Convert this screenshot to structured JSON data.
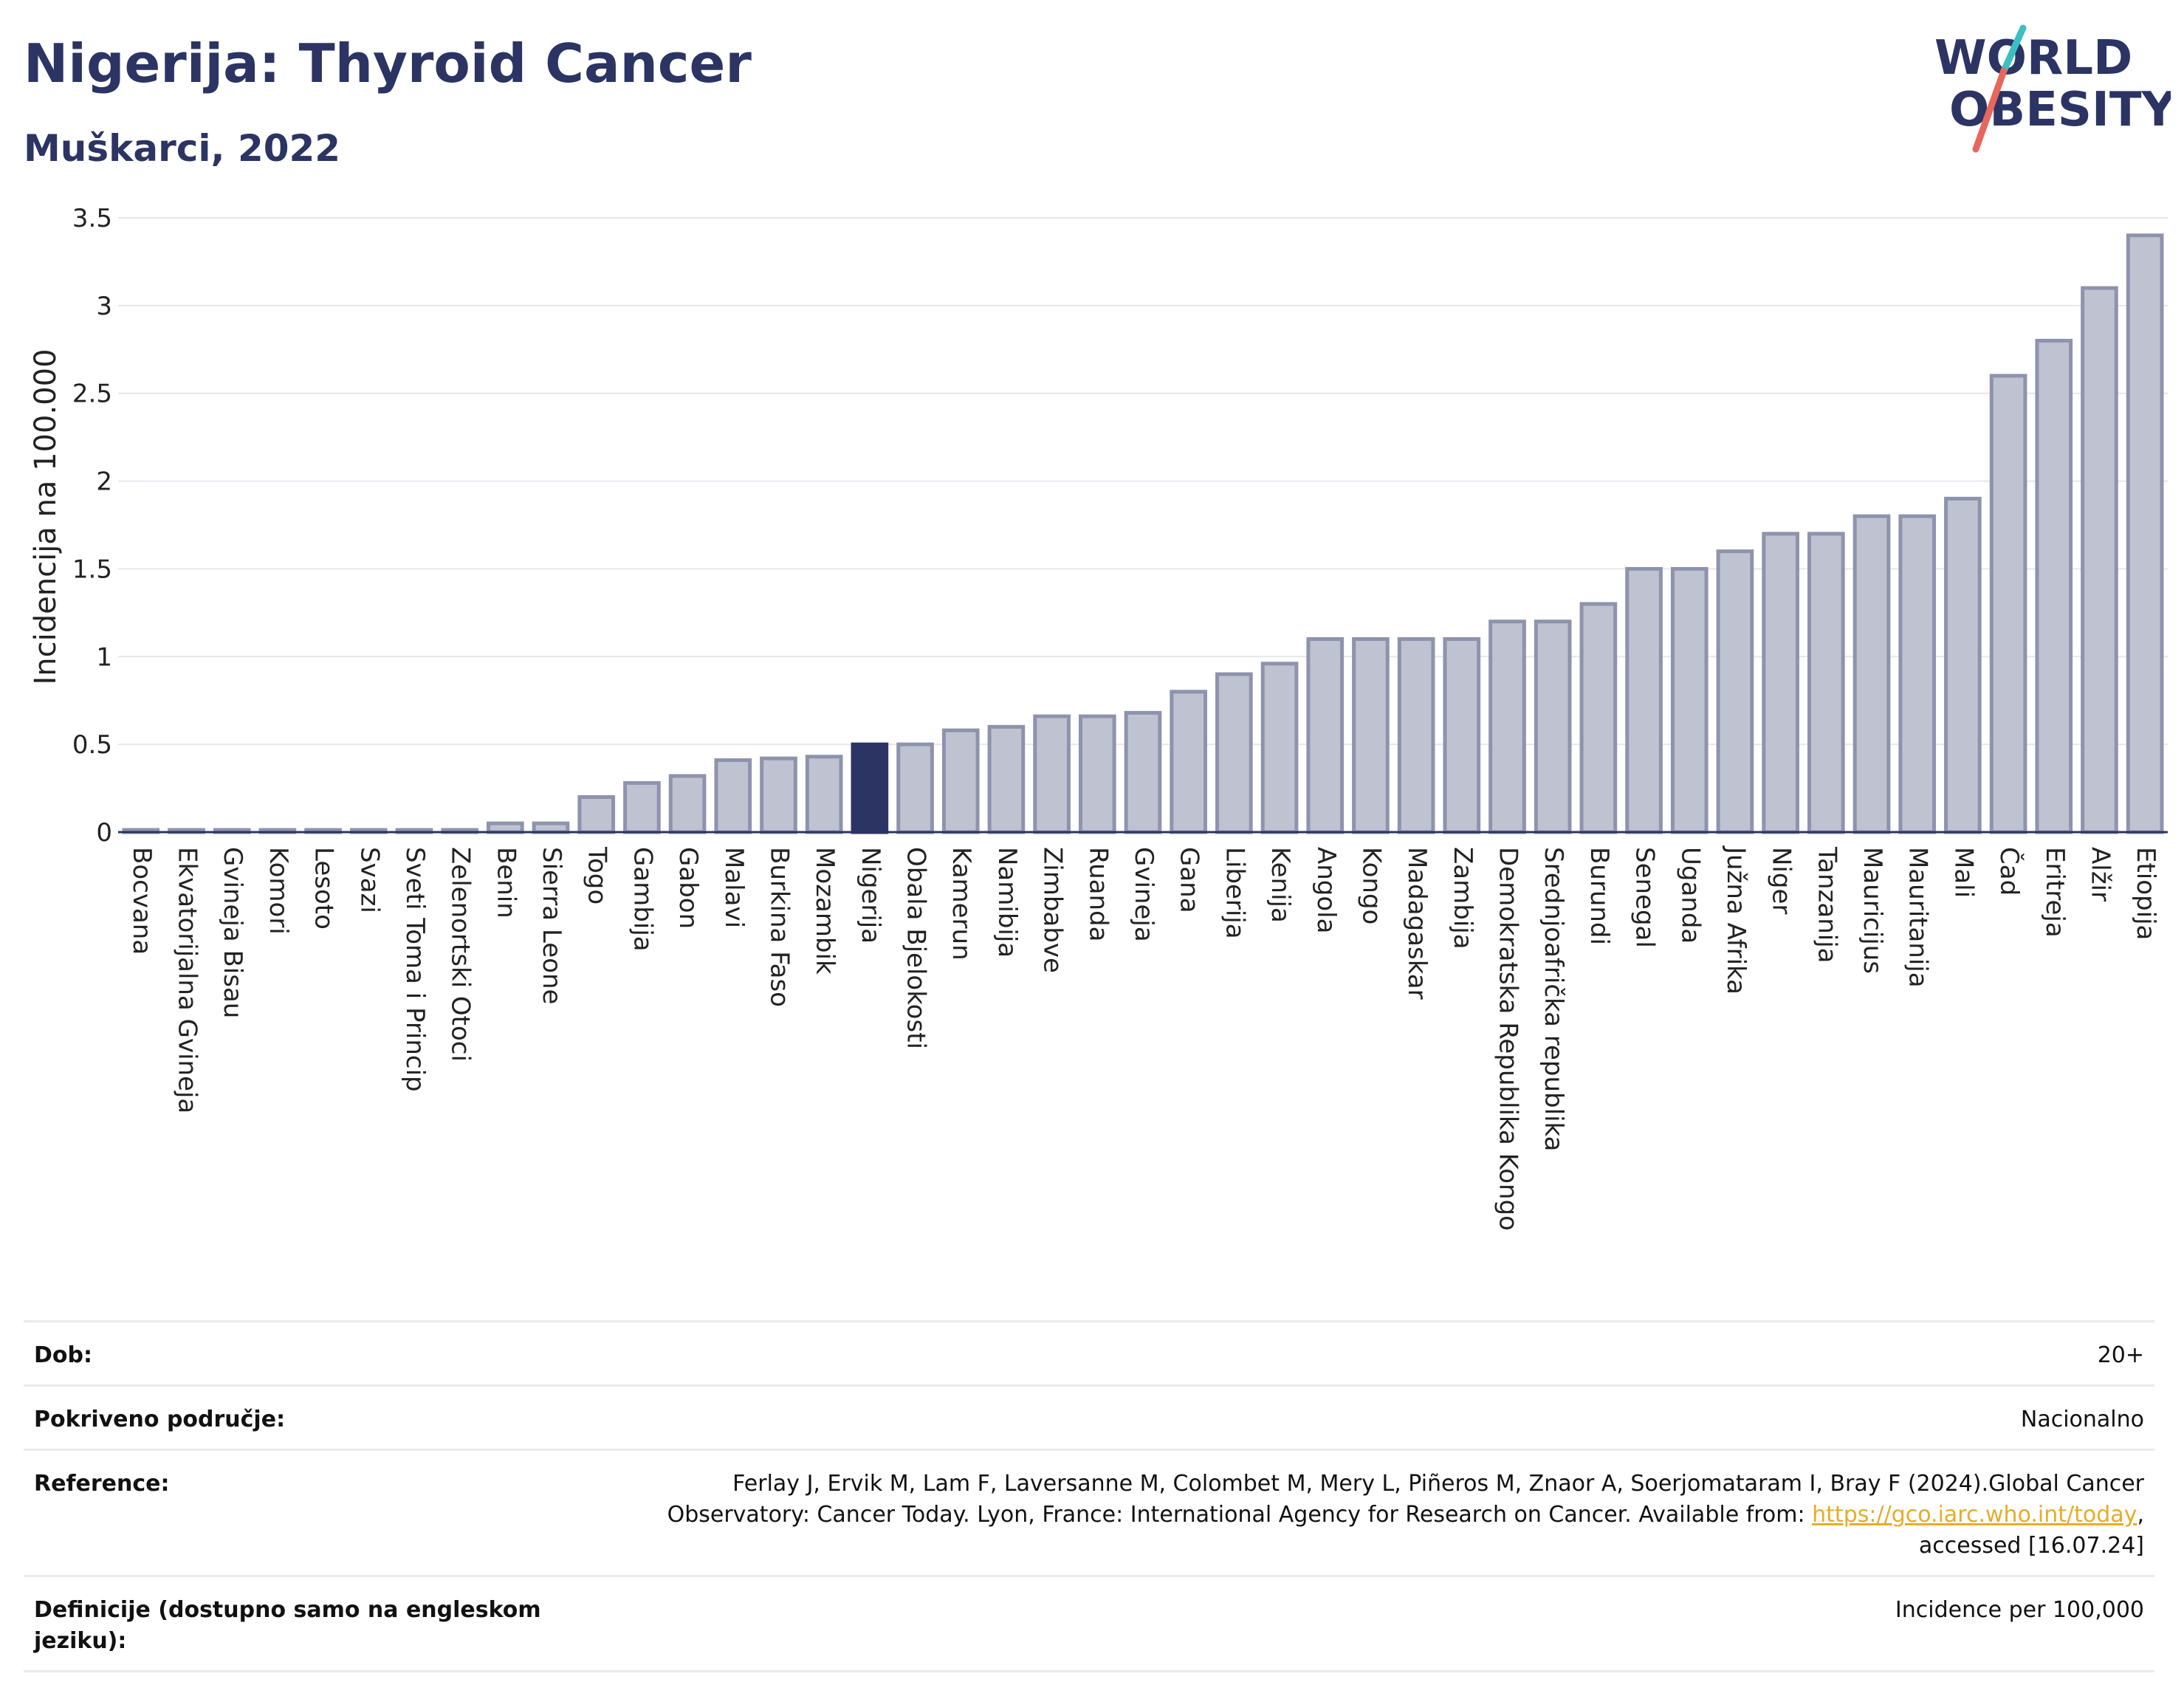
{
  "title": "Nigerija: Thyroid Cancer",
  "subtitle": "Muškarci, 2022",
  "logo": {
    "line1": "WORLD",
    "line2": "OBESITY"
  },
  "colors": {
    "bar": "#bfc2d0",
    "bar_border": "#8e93ad",
    "highlight": "#2b3463",
    "title": "#2b3463"
  },
  "chart_data": {
    "type": "bar",
    "ylabel": "Incidencija na 100.000",
    "ylim": [
      0,
      3.5
    ],
    "yticks": [
      "0",
      "0.5",
      "1",
      "1.5",
      "2",
      "2.5",
      "3",
      "3.5"
    ],
    "grid": true,
    "highlight": "Nigerija",
    "categories": [
      "Bocvana",
      "Ekvatorijalna Gvineja",
      "Gvineja Bisau",
      "Komori",
      "Lesoto",
      "Svazi",
      "Sveti Toma i Princip",
      "Zelenortski Otoci",
      "Benin",
      "Sierra Leone",
      "Togo",
      "Gambija",
      "Gabon",
      "Malavi",
      "Burkina Faso",
      "Mozambik",
      "Nigerija",
      "Obala Bjelokosti",
      "Kamerun",
      "Namibija",
      "Zimbabve",
      "Ruanda",
      "Gvineja",
      "Gana",
      "Liberija",
      "Kenija",
      "Angola",
      "Kongo",
      "Madagaskar",
      "Zambija",
      "Demokratska Republika Kongo",
      "Srednjoafrička republika",
      "Burundi",
      "Senegal",
      "Uganda",
      "Južna Afrika",
      "Niger",
      "Tanzanija",
      "Mauricijus",
      "Mauritanija",
      "Mali",
      "Čad",
      "Eritreja",
      "Alžir",
      "Etiopija"
    ],
    "values": [
      0.01,
      0.01,
      0.01,
      0.01,
      0.01,
      0.01,
      0.01,
      0.01,
      0.05,
      0.05,
      0.2,
      0.28,
      0.32,
      0.41,
      0.42,
      0.43,
      0.5,
      0.5,
      0.58,
      0.6,
      0.66,
      0.66,
      0.68,
      0.8,
      0.9,
      0.96,
      1.1,
      1.1,
      1.1,
      1.1,
      1.2,
      1.2,
      1.3,
      1.5,
      1.5,
      1.6,
      1.7,
      1.7,
      1.8,
      1.8,
      1.9,
      2.6,
      2.8,
      3.1,
      3.4
    ]
  },
  "info": {
    "rows": [
      {
        "label": "Dob:",
        "value": "20+"
      },
      {
        "label": "Pokriveno područje:",
        "value": "Nacionalno"
      },
      {
        "label": "Reference:",
        "value_pre": "Ferlay J, Ervik M, Lam F, Laversanne M, Colombet M, Mery L, Piñeros M, Znaor A, Soerjomataram I, Bray F (2024).Global Cancer Observatory: Cancer Today. Lyon, France: International Agency for Research on Cancer. Available from: ",
        "link": "https://gco.iarc.who.int/today",
        "value_post": ", accessed [16.07.24]"
      },
      {
        "label": "Definicije (dostupno samo na engleskom jeziku):",
        "value": "Incidence per 100,000"
      }
    ]
  }
}
